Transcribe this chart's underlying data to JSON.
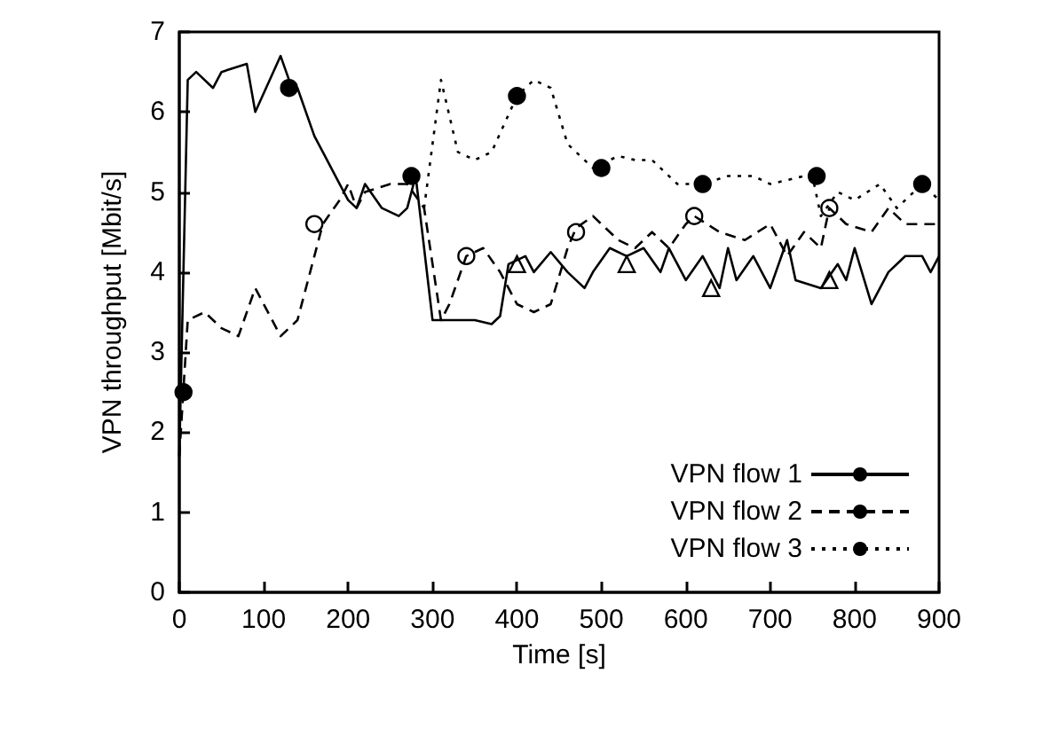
{
  "chart_data": {
    "type": "line",
    "xlabel": "Time [s]",
    "ylabel": "VPN throughput [Mbit/s]",
    "xlim": [
      0,
      900
    ],
    "xticks": [
      0,
      100,
      200,
      300,
      400,
      500,
      600,
      700,
      800,
      900
    ],
    "ylim": [
      0,
      7
    ],
    "yticks": [
      0,
      1,
      2,
      3,
      4,
      5,
      6,
      7
    ],
    "grid": false,
    "legend": "bottom right",
    "marker": "none",
    "series": [
      {
        "name": "VPN flow 1",
        "color": "#000000",
        "line_style": "solid",
        "x": [
          0,
          10,
          20,
          40,
          50,
          80,
          90,
          120,
          130,
          140,
          160,
          170,
          190,
          200,
          210,
          220,
          240,
          260,
          270,
          280,
          300,
          320,
          350,
          370,
          380,
          390,
          410,
          420,
          440,
          460,
          480,
          490,
          510,
          530,
          550,
          570,
          580,
          600,
          620,
          640,
          650,
          660,
          680,
          700,
          720,
          730,
          760,
          780,
          790,
          800,
          820,
          840,
          860,
          880,
          890,
          900
        ],
        "values": [
          1.7,
          6.4,
          6.5,
          6.3,
          6.5,
          6.6,
          6.0,
          6.7,
          6.4,
          6.3,
          5.7,
          5.5,
          5.1,
          4.9,
          4.8,
          5.1,
          4.8,
          4.7,
          4.8,
          5.2,
          3.4,
          3.4,
          3.4,
          3.35,
          3.45,
          4.1,
          4.2,
          4.0,
          4.25,
          4.0,
          3.8,
          4.0,
          4.3,
          4.2,
          4.3,
          4.0,
          4.3,
          3.9,
          4.2,
          3.8,
          4.3,
          3.9,
          4.2,
          3.8,
          4.4,
          3.9,
          3.8,
          4.1,
          3.9,
          4.3,
          3.6,
          4.0,
          4.2,
          4.2,
          4.0,
          4.2
        ]
      },
      {
        "name": "VPN flow 2",
        "color": "#000000",
        "line_style": "dashed",
        "x": [
          0,
          10,
          30,
          50,
          70,
          90,
          120,
          140,
          160,
          170,
          190,
          200,
          210,
          220,
          250,
          270,
          290,
          310,
          320,
          340,
          360,
          380,
          400,
          420,
          440,
          460,
          470,
          490,
          520,
          540,
          560,
          580,
          600,
          610,
          640,
          670,
          700,
          720,
          740,
          760,
          770,
          790,
          820,
          840,
          860,
          900
        ],
        "values": [
          1.7,
          3.4,
          3.5,
          3.3,
          3.2,
          3.8,
          3.2,
          3.4,
          4.2,
          4.6,
          4.9,
          5.1,
          4.8,
          5.0,
          5.1,
          5.1,
          4.8,
          3.4,
          3.6,
          4.2,
          4.3,
          4.0,
          3.6,
          3.5,
          3.6,
          4.3,
          4.55,
          4.7,
          4.4,
          4.3,
          4.5,
          4.3,
          4.6,
          4.7,
          4.5,
          4.4,
          4.6,
          4.2,
          4.5,
          4.3,
          4.8,
          4.6,
          4.5,
          4.8,
          4.6,
          4.6
        ]
      },
      {
        "name": "VPN flow 3",
        "color": "#000000",
        "line_style": "dotted",
        "x": [
          290,
          310,
          330,
          350,
          370,
          400,
          420,
          440,
          460,
          490,
          520,
          540,
          560,
          590,
          620,
          650,
          680,
          700,
          740,
          750,
          760,
          780,
          800,
          830,
          850,
          870,
          880,
          900
        ],
        "values": [
          4.8,
          6.4,
          5.5,
          5.4,
          5.5,
          6.2,
          6.4,
          6.3,
          5.6,
          5.3,
          5.45,
          5.4,
          5.4,
          5.1,
          5.1,
          5.2,
          5.2,
          5.1,
          5.2,
          5.2,
          4.7,
          5.0,
          4.9,
          5.1,
          4.8,
          5.0,
          5.1,
          4.9
        ]
      },
      {
        "type": "scatter",
        "marker": "circle",
        "color": "#000000",
        "x": [
          5,
          130,
          275,
          400,
          500,
          620,
          755,
          880
        ],
        "values": [
          2.5,
          6.3,
          5.2,
          6.2,
          5.3,
          5.1,
          5.2,
          5.1
        ]
      },
      {
        "type": "scatter",
        "marker": "circle",
        "color": "#ffffff",
        "x": [
          160,
          340,
          470,
          610,
          770
        ],
        "values": [
          4.6,
          4.2,
          4.5,
          4.7,
          4.8
        ]
      },
      {
        "type": "scatter",
        "marker": "triangle",
        "color": "#ffffff",
        "x": [
          400,
          530,
          630,
          770
        ],
        "values": [
          4.1,
          4.1,
          3.8,
          3.9
        ]
      }
    ]
  }
}
